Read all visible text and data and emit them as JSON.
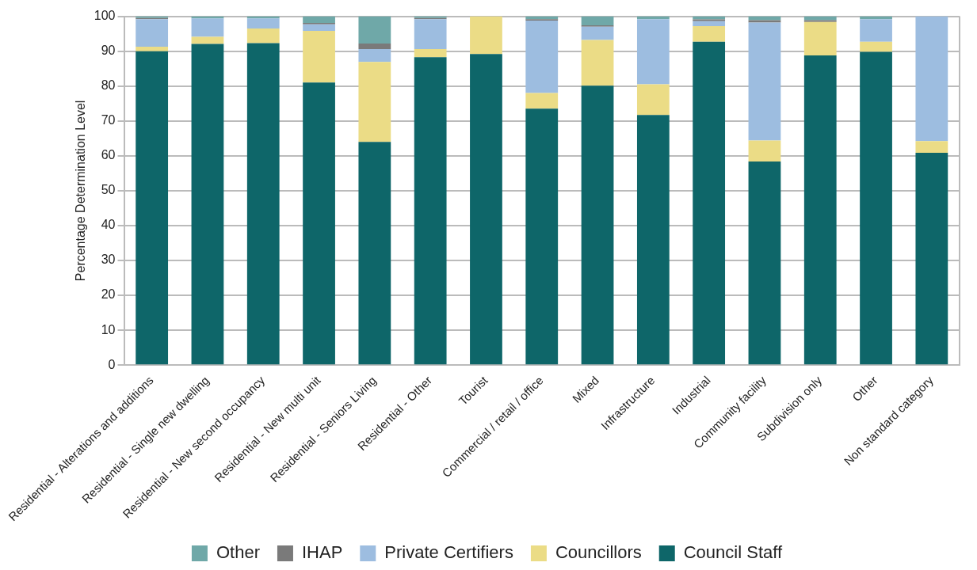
{
  "chart_data": {
    "type": "bar",
    "stacked": true,
    "ylabel": "Percentage Determination Level",
    "categories": [
      "Residential - Alterations and additions",
      "Residential - Single new dwelling",
      "Residential - New second occupancy",
      "Residential - New multi unit",
      "Residential - Seniors Living",
      "Residential - Other",
      "Tourist",
      "Commercial / retail / office",
      "Mixed",
      "Infrastructure",
      "Industrial",
      "Community facility",
      "Subdivision only",
      "Other",
      "Non standard category"
    ],
    "series": [
      {
        "name": "Council Staff",
        "color": "#0e6669",
        "values": [
          90,
          92.1,
          92.3,
          81,
          64,
          88.3,
          89.2,
          73.5,
          80.1,
          71.7,
          92.7,
          58.4,
          88.8,
          89.8,
          60.9
        ]
      },
      {
        "name": "Councillors",
        "color": "#ebdc86",
        "values": [
          1.3,
          2,
          4.2,
          14.8,
          22.9,
          2.3,
          10.8,
          4.5,
          13.1,
          8.8,
          4.5,
          6,
          9.6,
          2.9,
          3.3
        ]
      },
      {
        "name": "Private Certifiers",
        "color": "#9dbde0",
        "values": [
          7.9,
          5.3,
          2.9,
          1.9,
          3.7,
          8.6,
          0,
          20.8,
          3.8,
          18.7,
          1.4,
          33.8,
          0,
          6.5,
          35.8
        ]
      },
      {
        "name": "IHAP",
        "color": "#7a7a7a",
        "values": [
          0.3,
          0,
          0,
          0.4,
          1.6,
          0.3,
          0,
          0.4,
          0.4,
          0,
          0.5,
          0.7,
          0.5,
          0,
          0
        ]
      },
      {
        "name": "Other",
        "color": "#6fa8a8",
        "values": [
          0.5,
          0.6,
          0.6,
          1.9,
          7.8,
          0.5,
          0,
          0.8,
          2.6,
          0.8,
          0.9,
          1.1,
          1.1,
          0.8,
          0
        ]
      }
    ],
    "ylim": [
      0,
      100
    ],
    "yticks": [
      0,
      10,
      20,
      30,
      40,
      50,
      60,
      70,
      80,
      90,
      100
    ],
    "grid": "y",
    "legend": "bottom"
  }
}
